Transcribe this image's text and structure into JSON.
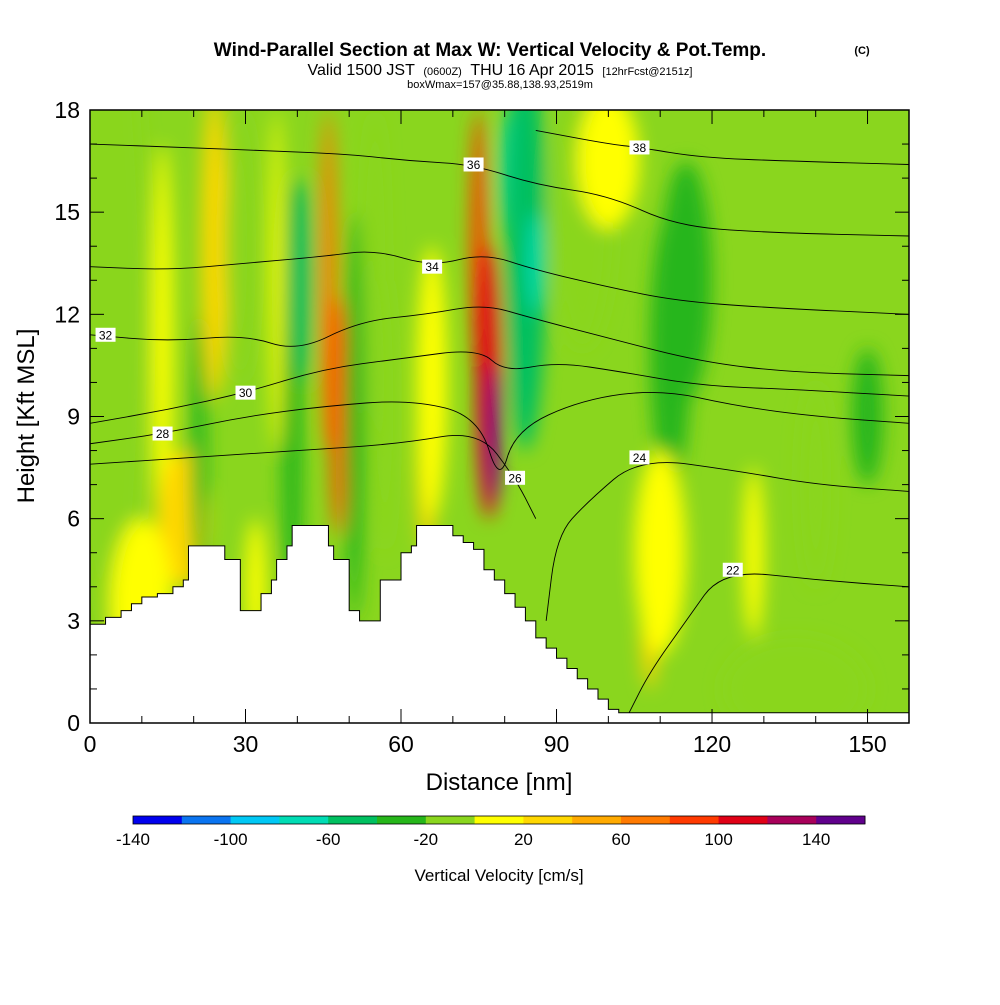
{
  "chart_data": {
    "type": "heatmap",
    "title": "Wind-Parallel Section at Max W: Vertical Velocity & Pot.Temp.",
    "title_mark": "(C)",
    "subtitle_parts": [
      "Valid 1500 JST",
      "(0600Z)",
      "THU 16 Apr 2015",
      "[12hrFcst@2151z]"
    ],
    "subtitle2": "boxWmax=157@35.88,138.93,2519m",
    "xlabel": "Distance [nm]",
    "ylabel": "Height [Kft MSL]",
    "xlim": [
      0,
      158
    ],
    "ylim": [
      0,
      18
    ],
    "x_ticks": [
      {
        "value": 0,
        "label": "0"
      },
      {
        "value": 30,
        "label": "30"
      },
      {
        "value": 60,
        "label": "60"
      },
      {
        "value": 90,
        "label": "90"
      },
      {
        "value": 120,
        "label": "120"
      },
      {
        "value": 150,
        "label": "150"
      }
    ],
    "y_ticks": [
      {
        "value": 0,
        "label": "0"
      },
      {
        "value": 3,
        "label": "3"
      },
      {
        "value": 6,
        "label": "6"
      },
      {
        "value": 9,
        "label": "9"
      },
      {
        "value": 12,
        "label": "12"
      },
      {
        "value": 15,
        "label": "15"
      },
      {
        "value": 18,
        "label": "18"
      }
    ],
    "colorbar": {
      "label": "Vertical Velocity [cm/s]",
      "bins": [
        {
          "from": -140,
          "to": -120,
          "color": "#0000ee"
        },
        {
          "from": -120,
          "to": -100,
          "color": "#0a74f0"
        },
        {
          "from": -100,
          "to": -80,
          "color": "#00c8f5"
        },
        {
          "from": -80,
          "to": -60,
          "color": "#00dcb4"
        },
        {
          "from": -60,
          "to": -40,
          "color": "#00c060"
        },
        {
          "from": -40,
          "to": -20,
          "color": "#26b61a"
        },
        {
          "from": -20,
          "to": 0,
          "color": "#8ad61e"
        },
        {
          "from": 0,
          "to": 20,
          "color": "#ffff00"
        },
        {
          "from": 20,
          "to": 40,
          "color": "#ffd700"
        },
        {
          "from": 40,
          "to": 60,
          "color": "#ffaa00"
        },
        {
          "from": 60,
          "to": 80,
          "color": "#ff7a00"
        },
        {
          "from": 80,
          "to": 100,
          "color": "#ff3a00"
        },
        {
          "from": 100,
          "to": 120,
          "color": "#e00016"
        },
        {
          "from": 120,
          "to": 140,
          "color": "#a8005a"
        },
        {
          "from": 140,
          "to": 160,
          "color": "#60008c"
        }
      ],
      "tick_labels": [
        {
          "value": -140,
          "label": "-140"
        },
        {
          "value": -100,
          "label": "-100"
        },
        {
          "value": -60,
          "label": "-60"
        },
        {
          "value": -20,
          "label": "-20"
        },
        {
          "value": 20,
          "label": "20"
        },
        {
          "value": 60,
          "label": "60"
        },
        {
          "value": 100,
          "label": "100"
        },
        {
          "value": 140,
          "label": "140"
        }
      ]
    },
    "velocity_features": [
      {
        "x": 4,
        "y": 12,
        "rx": 7,
        "ry": 10,
        "w": -10
      },
      {
        "x": 14,
        "y": 11,
        "rx": 2,
        "ry": 6,
        "w": 10
      },
      {
        "x": 18,
        "y": 6,
        "rx": 5,
        "ry": 2,
        "w": 25
      },
      {
        "x": 24,
        "y": 14,
        "rx": 2.5,
        "ry": 4.5,
        "w": 30
      },
      {
        "x": 21,
        "y": 8,
        "rx": 1.5,
        "ry": 4,
        "w": -30
      },
      {
        "x": 29,
        "y": 14,
        "rx": 3,
        "ry": 4,
        "w": -10
      },
      {
        "x": 36,
        "y": 13,
        "rx": 1.2,
        "ry": 5,
        "w": 10
      },
      {
        "x": 39,
        "y": 9,
        "rx": 2,
        "ry": 7,
        "w": -25
      },
      {
        "x": 41,
        "y": 13,
        "rx": 2,
        "ry": 3,
        "w": -45
      },
      {
        "x": 46,
        "y": 13,
        "rx": 1.5,
        "ry": 5,
        "w": 70
      },
      {
        "x": 48,
        "y": 9,
        "rx": 1.5,
        "ry": 3.5,
        "w": 90
      },
      {
        "x": 51,
        "y": 9,
        "rx": 2,
        "ry": 6,
        "w": -25
      },
      {
        "x": 55,
        "y": 13,
        "rx": 2,
        "ry": 5,
        "w": -15
      },
      {
        "x": 57,
        "y": 9,
        "rx": 1.5,
        "ry": 4,
        "w": -20
      },
      {
        "x": 65,
        "y": 8,
        "rx": 2,
        "ry": 3,
        "w": 30
      },
      {
        "x": 66,
        "y": 10,
        "rx": 3,
        "ry": 4,
        "w": 10
      },
      {
        "x": 75,
        "y": 14,
        "rx": 1.5,
        "ry": 4,
        "w": 90
      },
      {
        "x": 77,
        "y": 10,
        "rx": 2.5,
        "ry": 4,
        "w": 110
      },
      {
        "x": 78,
        "y": 8.5,
        "rx": 1.2,
        "ry": 2,
        "w": 150
      },
      {
        "x": 81,
        "y": 16,
        "rx": 2,
        "ry": 2,
        "w": -70
      },
      {
        "x": 84,
        "y": 14,
        "rx": 4,
        "ry": 6,
        "w": -45
      },
      {
        "x": 86,
        "y": 13.5,
        "rx": 1.5,
        "ry": 1.5,
        "w": -70
      },
      {
        "x": 95,
        "y": 15,
        "rx": 6,
        "ry": 4,
        "w": -10
      },
      {
        "x": 100,
        "y": 16.5,
        "rx": 6,
        "ry": 2,
        "w": 10
      },
      {
        "x": 112,
        "y": 11,
        "rx": 4,
        "ry": 4,
        "w": -40
      },
      {
        "x": 115,
        "y": 13,
        "rx": 5,
        "ry": 3.5,
        "w": -25
      },
      {
        "x": 108,
        "y": 4,
        "rx": 2,
        "ry": 3,
        "w": 30
      },
      {
        "x": 110,
        "y": 5,
        "rx": 5,
        "ry": 3,
        "w": 10
      },
      {
        "x": 128,
        "y": 5,
        "rx": 2,
        "ry": 2.5,
        "w": 15
      },
      {
        "x": 140,
        "y": 7,
        "rx": 3,
        "ry": 3,
        "w": -10
      },
      {
        "x": 150,
        "y": 9,
        "rx": 3,
        "ry": 2,
        "w": -30
      },
      {
        "x": 136,
        "y": 1,
        "rx": 14,
        "ry": 1.5,
        "w": -10
      },
      {
        "x": 10,
        "y": 3.5,
        "rx": 6,
        "ry": 2.5,
        "w": 10
      },
      {
        "x": 32,
        "y": 4,
        "rx": 2,
        "ry": 2,
        "w": 10
      }
    ],
    "isentropes": [
      {
        "label": "22",
        "label_at": [
          124,
          4.5
        ],
        "points": [
          [
            158,
            4.0
          ],
          [
            140,
            4.2
          ],
          [
            122,
            4.5
          ],
          [
            115,
            3
          ],
          [
            108,
            1.5
          ],
          [
            104,
            0.3
          ]
        ]
      },
      {
        "label": "24",
        "label_at": [
          106,
          7.8
        ],
        "points": [
          [
            158,
            6.8
          ],
          [
            140,
            7.0
          ],
          [
            125,
            7.4
          ],
          [
            106,
            7.8
          ],
          [
            96,
            6.5
          ],
          [
            90,
            5.5
          ],
          [
            88,
            3
          ]
        ]
      },
      {
        "label": "26",
        "label_at": [
          82,
          7.2
        ],
        "points": [
          [
            0,
            7.6
          ],
          [
            20,
            7.8
          ],
          [
            40,
            8.0
          ],
          [
            60,
            8.2
          ],
          [
            75,
            8.6
          ],
          [
            82,
            7.2
          ],
          [
            86,
            6.0
          ]
        ]
      },
      {
        "label": "28",
        "label_at": [
          14,
          8.5
        ],
        "points": [
          [
            0,
            8.2
          ],
          [
            14,
            8.5
          ],
          [
            30,
            9.0
          ],
          [
            45,
            9.3
          ],
          [
            62,
            9.5
          ],
          [
            75,
            9.0
          ],
          [
            79,
            7.0
          ],
          [
            82,
            8.6
          ],
          [
            95,
            9.5
          ],
          [
            110,
            9.8
          ],
          [
            125,
            9.3
          ],
          [
            140,
            9.0
          ],
          [
            158,
            8.8
          ]
        ]
      },
      {
        "label": "30",
        "label_at": [
          30,
          9.7
        ],
        "points": [
          [
            0,
            8.8
          ],
          [
            15,
            9.2
          ],
          [
            30,
            9.7
          ],
          [
            45,
            10.4
          ],
          [
            60,
            10.7
          ],
          [
            75,
            11.0
          ],
          [
            80,
            10.3
          ],
          [
            90,
            10.6
          ],
          [
            103,
            10.3
          ],
          [
            118,
            9.9
          ],
          [
            135,
            9.8
          ],
          [
            158,
            9.6
          ]
        ]
      },
      {
        "label": "32",
        "label_at": [
          3,
          11.4
        ],
        "points": [
          [
            0,
            11.4
          ],
          [
            15,
            11.2
          ],
          [
            30,
            11.4
          ],
          [
            40,
            10.9
          ],
          [
            52,
            11.8
          ],
          [
            65,
            12.0
          ],
          [
            76,
            12.3
          ],
          [
            85,
            11.9
          ],
          [
            100,
            11.3
          ],
          [
            118,
            10.6
          ],
          [
            135,
            10.3
          ],
          [
            158,
            10.2
          ]
        ]
      },
      {
        "label": "34",
        "label_at": [
          66,
          13.4
        ],
        "points": [
          [
            0,
            13.4
          ],
          [
            15,
            13.3
          ],
          [
            30,
            13.5
          ],
          [
            45,
            13.7
          ],
          [
            55,
            13.9
          ],
          [
            66,
            13.4
          ],
          [
            76,
            13.8
          ],
          [
            86,
            13.3
          ],
          [
            100,
            12.8
          ],
          [
            113,
            12.4
          ],
          [
            130,
            12.2
          ],
          [
            158,
            12.0
          ]
        ]
      },
      {
        "label": "36",
        "label_at": [
          74,
          16.4
        ],
        "points": [
          [
            0,
            17.0
          ],
          [
            18,
            16.9
          ],
          [
            35,
            16.8
          ],
          [
            50,
            16.7
          ],
          [
            62,
            16.5
          ],
          [
            74,
            16.4
          ],
          [
            86,
            15.8
          ],
          [
            100,
            15.5
          ],
          [
            113,
            14.6
          ],
          [
            130,
            14.4
          ],
          [
            158,
            14.3
          ]
        ]
      },
      {
        "label": "38",
        "label_at": [
          106,
          16.9
        ],
        "points": [
          [
            86,
            17.4
          ],
          [
            100,
            17.0
          ],
          [
            106,
            16.9
          ],
          [
            118,
            16.6
          ],
          [
            135,
            16.5
          ],
          [
            158,
            16.4
          ]
        ]
      }
    ],
    "terrain_top_kft": [
      [
        0,
        2.9
      ],
      [
        3,
        3.1
      ],
      [
        6,
        3.3
      ],
      [
        8,
        3.5
      ],
      [
        10,
        3.7
      ],
      [
        13,
        3.8
      ],
      [
        16,
        4.0
      ],
      [
        18,
        4.2
      ],
      [
        19,
        5.2
      ],
      [
        24,
        5.2
      ],
      [
        26,
        4.8
      ],
      [
        28,
        4.8
      ],
      [
        29,
        3.3
      ],
      [
        32,
        3.3
      ],
      [
        33,
        3.8
      ],
      [
        35,
        4.2
      ],
      [
        36,
        4.8
      ],
      [
        38,
        5.2
      ],
      [
        39,
        5.8
      ],
      [
        45,
        5.8
      ],
      [
        46,
        5.2
      ],
      [
        47,
        4.8
      ],
      [
        49,
        4.8
      ],
      [
        50,
        3.3
      ],
      [
        52,
        3.0
      ],
      [
        55,
        3.0
      ],
      [
        56,
        4.2
      ],
      [
        59,
        4.2
      ],
      [
        60,
        5.0
      ],
      [
        62,
        5.2
      ],
      [
        63,
        5.8
      ],
      [
        68,
        5.8
      ],
      [
        70,
        5.5
      ],
      [
        72,
        5.3
      ],
      [
        74,
        5.1
      ],
      [
        76,
        4.5
      ],
      [
        78,
        4.2
      ],
      [
        80,
        3.8
      ],
      [
        82,
        3.4
      ],
      [
        84,
        3.0
      ],
      [
        86,
        2.5
      ],
      [
        88,
        2.2
      ],
      [
        90,
        1.9
      ],
      [
        92,
        1.6
      ],
      [
        94,
        1.3
      ],
      [
        96,
        1.0
      ],
      [
        98,
        0.7
      ],
      [
        100,
        0.4
      ],
      [
        102,
        0.3
      ],
      [
        158,
        0.3
      ]
    ]
  }
}
